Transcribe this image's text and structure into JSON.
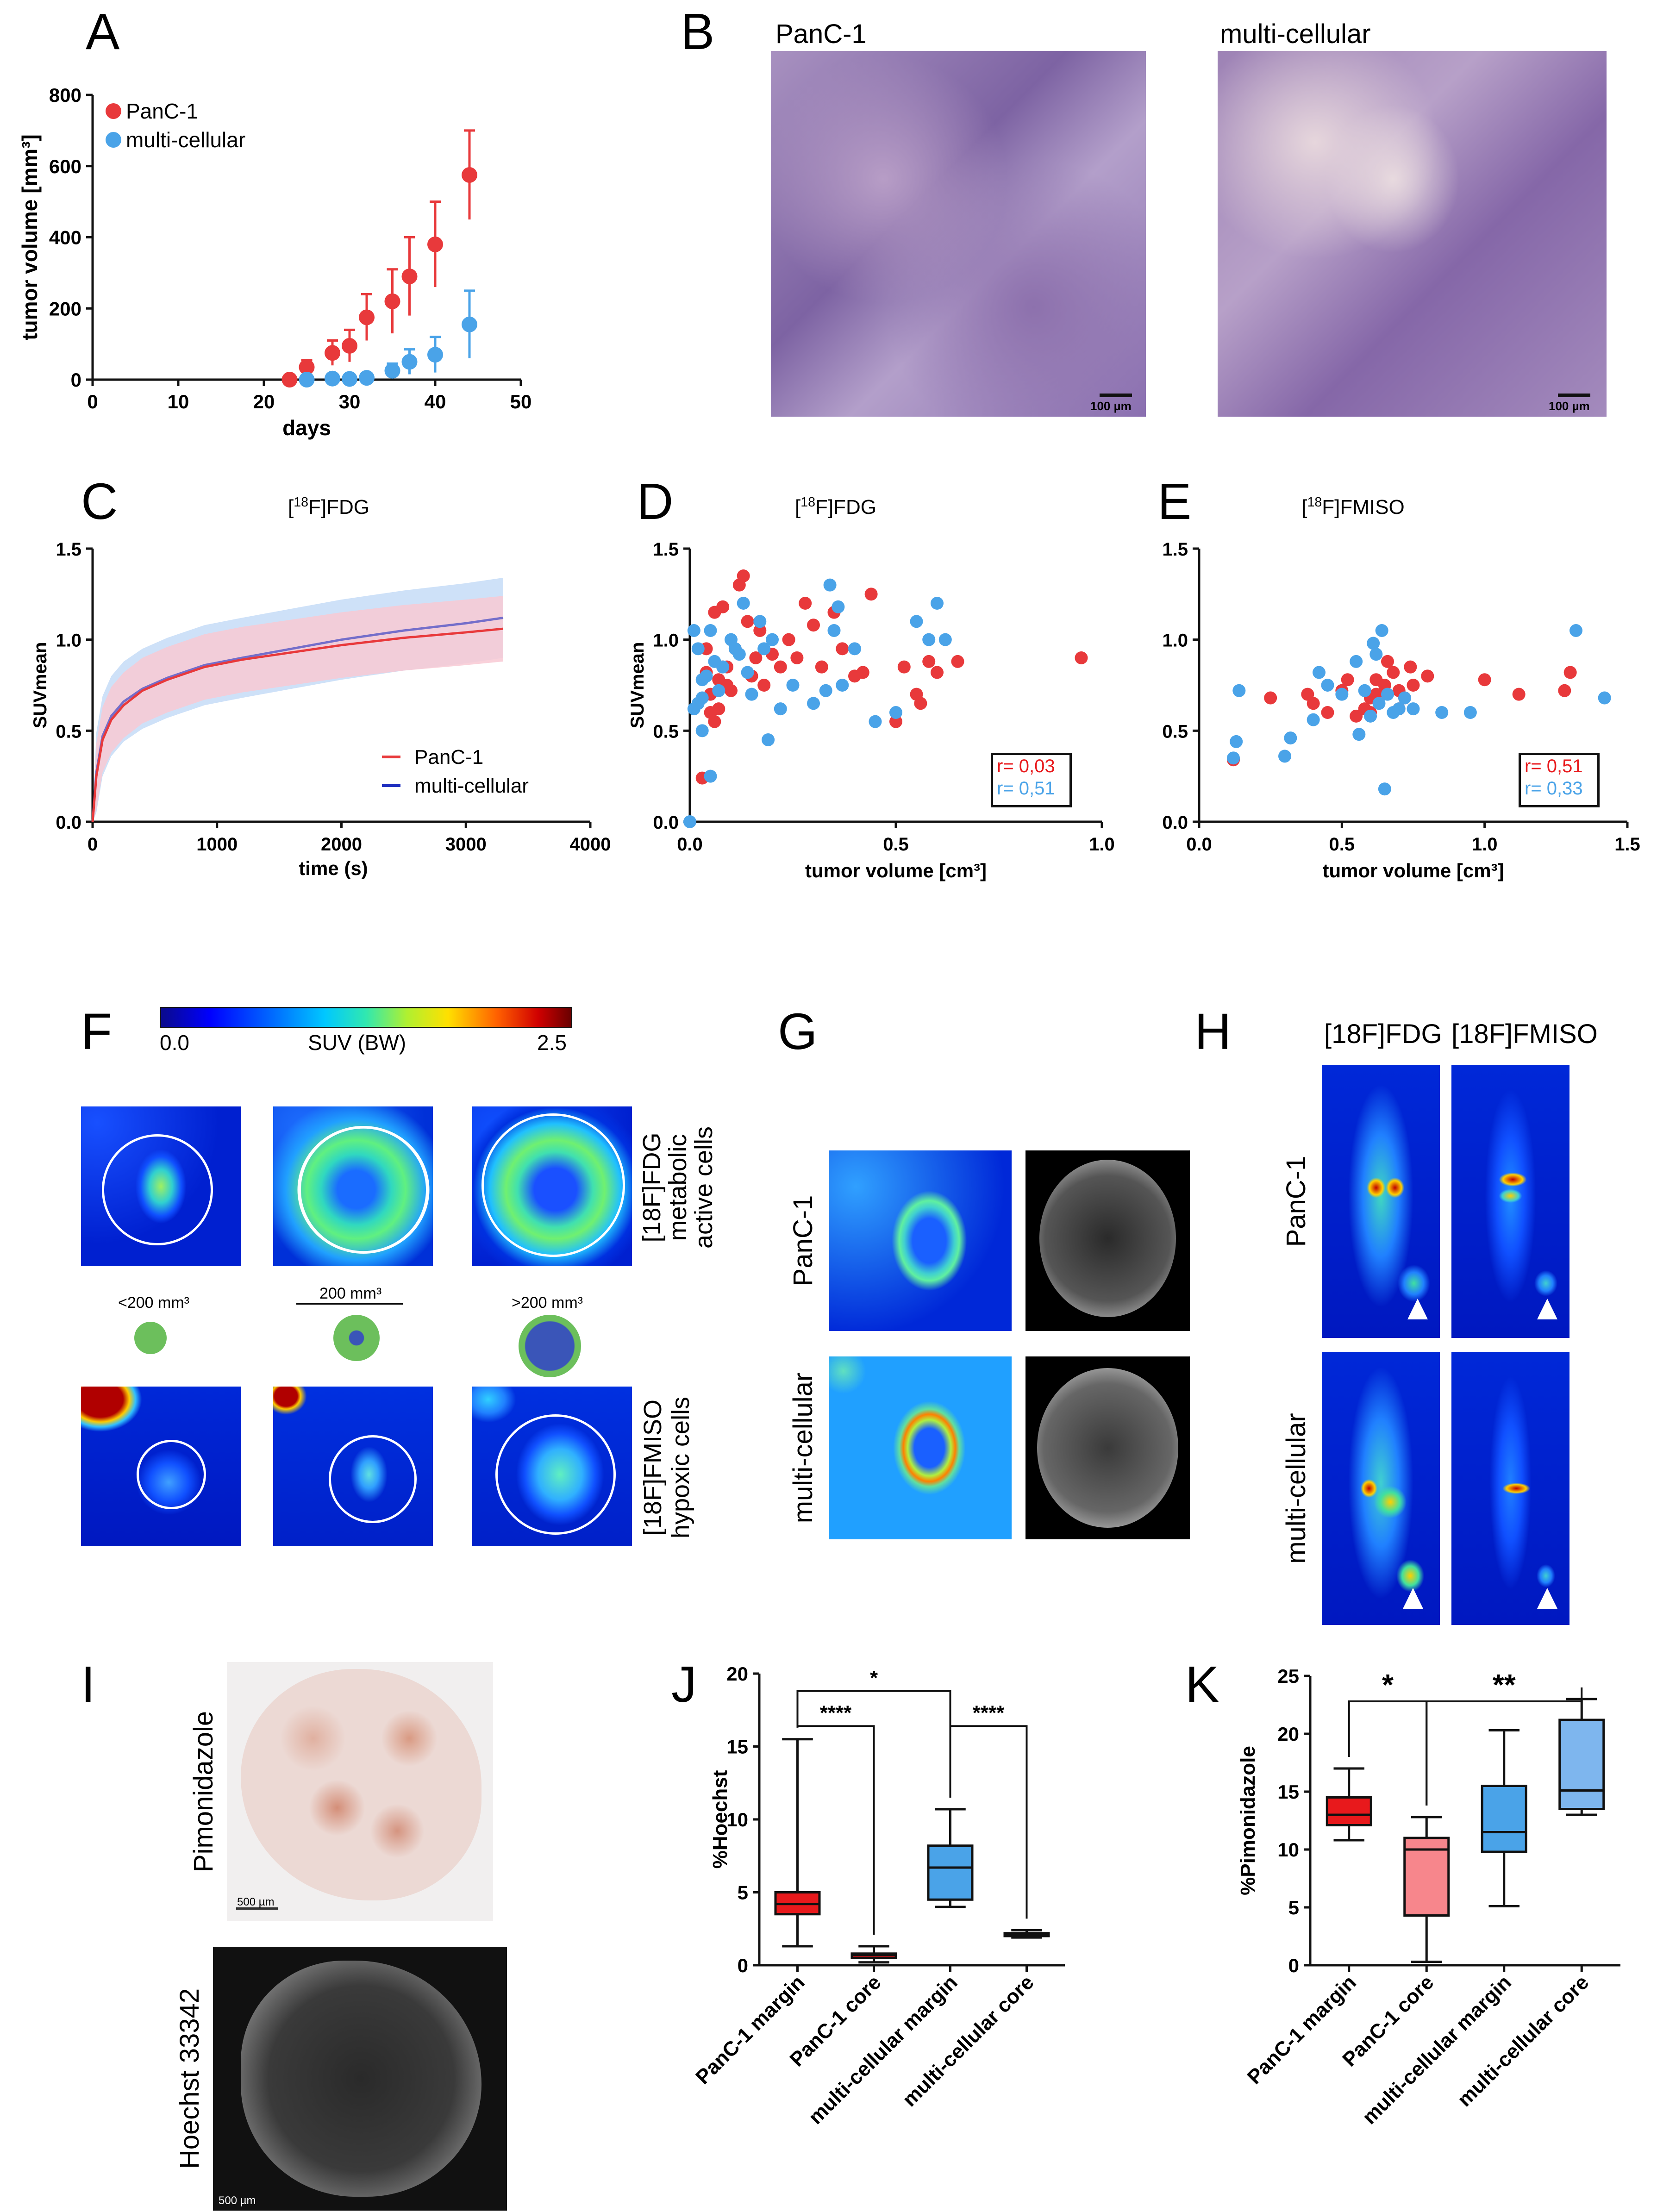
{
  "panels": {
    "A": {
      "letter": "A",
      "chart_data": {
        "type": "scatter",
        "title": "",
        "xlabel": "days",
        "ylabel": "tumor volume [mm³]",
        "xlim": [
          0,
          50
        ],
        "ylim": [
          0,
          800
        ],
        "xticks": [
          0,
          10,
          20,
          30,
          40,
          50
        ],
        "yticks": [
          0,
          200,
          400,
          600,
          800
        ],
        "legend_position": "top-left",
        "series": [
          {
            "name": "PanC-1",
            "color": "#e8393b",
            "x": [
              23,
              25,
              28,
              30,
              32,
              35,
              37,
              40,
              44
            ],
            "y": [
              0,
              35,
              75,
              95,
              175,
              220,
              290,
              380,
              575
            ],
            "err": [
              10,
              20,
              35,
              45,
              65,
              90,
              110,
              120,
              125
            ]
          },
          {
            "name": "multi-cellular",
            "color": "#4aa3e8",
            "x": [
              25,
              28,
              30,
              32,
              35,
              37,
              40,
              44
            ],
            "y": [
              0,
              3,
              2,
              5,
              25,
              50,
              70,
              155
            ],
            "err": [
              3,
              5,
              5,
              8,
              20,
              35,
              50,
              95
            ]
          }
        ]
      }
    },
    "B": {
      "letter": "B",
      "image_labels": [
        "PanC-1",
        "multi-cellular"
      ],
      "scale_label": "100 µm"
    },
    "C": {
      "letter": "C",
      "chart_data": {
        "type": "line",
        "title": "[18F]FDG",
        "xlabel": "time (s)",
        "ylabel": "SUVmean",
        "xlim": [
          0,
          4000
        ],
        "ylim": [
          0,
          1.5
        ],
        "xticks": [
          0,
          1000,
          2000,
          3000,
          4000
        ],
        "yticks": [
          0.0,
          0.5,
          1.0,
          1.5
        ],
        "legend_position": "bottom-right",
        "series": [
          {
            "name": "PanC-1",
            "color": "#e8393b",
            "band": "#f8c9d3",
            "x": [
              0,
              30,
              80,
              150,
              250,
              400,
              600,
              900,
              1200,
              1600,
              2000,
              2500,
              3000,
              3300
            ],
            "y": [
              0,
              0.25,
              0.45,
              0.56,
              0.64,
              0.72,
              0.78,
              0.85,
              0.89,
              0.93,
              0.97,
              1.01,
              1.04,
              1.06
            ],
            "band_halfwidth": 0.18
          },
          {
            "name": "multi-cellular",
            "color": "#1f2fbf",
            "band": "#c6dcf7",
            "x": [
              0,
              30,
              80,
              150,
              250,
              400,
              600,
              900,
              1200,
              1600,
              2000,
              2500,
              3000,
              3300
            ],
            "y": [
              0,
              0.27,
              0.47,
              0.58,
              0.66,
              0.73,
              0.79,
              0.86,
              0.9,
              0.95,
              1.0,
              1.05,
              1.09,
              1.12
            ],
            "band_halfwidth": 0.22
          }
        ]
      }
    },
    "D": {
      "letter": "D",
      "r_labels": [
        "r= 0,03",
        "r= 0,51"
      ],
      "chart_data": {
        "type": "scatter",
        "title": "[18F]FDG",
        "xlabel": "tumor volume [cm³]",
        "ylabel": "SUVmean",
        "xlim": [
          0,
          1.0
        ],
        "ylim": [
          0,
          1.5
        ],
        "xticks": [
          0.0,
          0.5,
          1.0
        ],
        "yticks": [
          0.0,
          0.5,
          1.0,
          1.5
        ],
        "series": [
          {
            "name": "PanC-1",
            "color": "#e8393b",
            "x": [
              0.03,
              0.04,
              0.05,
              0.06,
              0.06,
              0.07,
              0.08,
              0.08,
              0.09,
              0.1,
              0.11,
              0.12,
              0.13,
              0.14,
              0.15,
              0.16,
              0.17,
              0.18,
              0.2,
              0.22,
              0.24,
              0.26,
              0.28,
              0.3,
              0.32,
              0.35,
              0.37,
              0.4,
              0.42,
              0.44,
              0.5,
              0.52,
              0.55,
              0.56,
              0.58,
              0.6,
              0.65,
              0.95,
              0.04,
              0.05,
              0.07,
              0.09
            ],
            "y": [
              0.24,
              0.82,
              0.7,
              0.55,
              1.15,
              0.62,
              0.85,
              1.18,
              0.75,
              0.72,
              0.95,
              1.3,
              1.35,
              1.1,
              0.8,
              0.9,
              1.05,
              0.75,
              0.92,
              0.85,
              1.0,
              0.9,
              1.2,
              1.08,
              0.85,
              1.15,
              0.95,
              0.8,
              0.82,
              1.25,
              0.55,
              0.85,
              0.7,
              0.65,
              0.88,
              0.82,
              0.88,
              0.9,
              0.95,
              0.6,
              0.78,
              0.85
            ]
          },
          {
            "name": "multi-cellular",
            "color": "#4aa3e8",
            "x": [
              0.0,
              0.01,
              0.01,
              0.02,
              0.02,
              0.03,
              0.03,
              0.04,
              0.05,
              0.06,
              0.07,
              0.08,
              0.1,
              0.11,
              0.12,
              0.13,
              0.14,
              0.15,
              0.17,
              0.18,
              0.19,
              0.2,
              0.22,
              0.25,
              0.3,
              0.33,
              0.34,
              0.35,
              0.36,
              0.37,
              0.4,
              0.45,
              0.5,
              0.55,
              0.58,
              0.6,
              0.62,
              0.03,
              0.05
            ],
            "y": [
              0.0,
              0.62,
              1.05,
              0.95,
              0.65,
              0.78,
              0.5,
              0.8,
              0.25,
              0.88,
              0.72,
              0.85,
              1.0,
              0.95,
              0.92,
              1.2,
              0.82,
              0.7,
              1.1,
              0.95,
              0.45,
              1.0,
              0.62,
              0.75,
              0.65,
              0.72,
              1.3,
              1.05,
              1.18,
              0.75,
              0.95,
              0.55,
              0.6,
              1.1,
              1.0,
              1.2,
              1.0,
              0.68,
              1.05
            ]
          }
        ]
      }
    },
    "E": {
      "letter": "E",
      "r_labels": [
        "r= 0,51",
        "r= 0,33"
      ],
      "chart_data": {
        "type": "scatter",
        "title": "[18F]FMISO",
        "xlabel": "tumor volume [cm³]",
        "ylabel": "",
        "xlim": [
          0,
          1.5
        ],
        "ylim": [
          0,
          1.5
        ],
        "xticks": [
          0.0,
          0.5,
          1.0,
          1.5
        ],
        "yticks": [
          0.0,
          0.5,
          1.0,
          1.5
        ],
        "series": [
          {
            "name": "PanC-1",
            "color": "#e8393b",
            "x": [
              0.12,
              0.25,
              0.38,
              0.4,
              0.45,
              0.5,
              0.52,
              0.55,
              0.58,
              0.6,
              0.6,
              0.62,
              0.62,
              0.65,
              0.66,
              0.68,
              0.7,
              0.7,
              0.72,
              0.74,
              0.75,
              0.8,
              1.0,
              1.12,
              1.28,
              1.3
            ],
            "y": [
              0.34,
              0.68,
              0.7,
              0.65,
              0.6,
              0.72,
              0.78,
              0.58,
              0.62,
              0.6,
              0.68,
              0.78,
              0.7,
              0.75,
              0.88,
              0.82,
              0.62,
              0.72,
              0.68,
              0.85,
              0.75,
              0.8,
              0.78,
              0.7,
              0.72,
              0.82
            ]
          },
          {
            "name": "multi-cellular",
            "color": "#4aa3e8",
            "x": [
              0.12,
              0.13,
              0.14,
              0.3,
              0.32,
              0.4,
              0.42,
              0.45,
              0.5,
              0.55,
              0.56,
              0.58,
              0.6,
              0.61,
              0.62,
              0.63,
              0.64,
              0.65,
              0.66,
              0.68,
              0.7,
              0.72,
              0.75,
              0.85,
              0.95,
              1.32,
              1.42
            ],
            "y": [
              0.35,
              0.44,
              0.72,
              0.36,
              0.46,
              0.56,
              0.82,
              0.75,
              0.7,
              0.88,
              0.48,
              0.72,
              0.58,
              0.98,
              0.92,
              0.65,
              1.05,
              0.18,
              0.7,
              0.6,
              0.62,
              0.68,
              0.62,
              0.6,
              0.6,
              1.05,
              0.68
            ]
          }
        ]
      }
    },
    "F": {
      "letter": "F",
      "colorbar": {
        "min_label": "0.0",
        "title": "SUV (BW)",
        "max_label": "2.5"
      },
      "size_labels": [
        "<200 mm³",
        "200 mm³",
        ">200 mm³"
      ],
      "row_labels": {
        "top": [
          "[18F]FDG",
          "metabolic",
          "active cells"
        ],
        "bottom": [
          "[18F]FMISO",
          "hypoxic cells"
        ]
      }
    },
    "G": {
      "letter": "G",
      "row_labels": [
        "PanC-1",
        "multi-cellular"
      ]
    },
    "H": {
      "letter": "H",
      "col_labels": [
        "[18F]FDG",
        "[18F]FMISO"
      ],
      "row_labels": [
        "PanC-1",
        "multi-cellular"
      ]
    },
    "I": {
      "letter": "I",
      "stain_labels": [
        "Pimonidazole",
        "Hoechst 33342"
      ],
      "scale_label": "500 µm"
    },
    "J": {
      "letter": "J",
      "chart_data": {
        "type": "box",
        "ylabel": "%Hoechst",
        "ylim": [
          0,
          20
        ],
        "yticks": [
          0,
          5,
          10,
          15,
          20
        ],
        "categories": [
          "PanC-1 margin",
          "PanC-1 core",
          "multi-cellular margin",
          "multi-cellular core"
        ],
        "colors": [
          "#e8191c",
          "#e8191c",
          "#4aa3e8",
          "#4aa3e8"
        ],
        "boxes": [
          {
            "min": 1.3,
            "q1": 3.5,
            "median": 4.2,
            "q3": 5.0,
            "max": 15.5
          },
          {
            "min": 0.2,
            "q1": 0.5,
            "median": 0.7,
            "q3": 0.8,
            "max": 1.3
          },
          {
            "min": 4.0,
            "q1": 4.5,
            "median": 6.7,
            "q3": 8.2,
            "max": 10.7
          },
          {
            "min": 1.9,
            "q1": 2.0,
            "median": 2.1,
            "q3": 2.2,
            "max": 2.4
          }
        ],
        "significance": [
          {
            "from": 0,
            "to": 2,
            "label": "*",
            "y": 18.8
          },
          {
            "from": 0,
            "to": 1,
            "label": "****",
            "y": 16.4
          },
          {
            "from": 2,
            "to": 3,
            "label": "****",
            "y": 16.4
          }
        ]
      }
    },
    "K": {
      "letter": "K",
      "chart_data": {
        "type": "box",
        "ylabel": "%Pimonidazole",
        "ylim": [
          0,
          25
        ],
        "yticks": [
          0,
          5,
          10,
          15,
          20,
          25
        ],
        "categories": [
          "PanC-1 margin",
          "PanC-1 core",
          "multi-cellular margin",
          "multi-cellular core"
        ],
        "colors": [
          "#e8191c",
          "#f7868c",
          "#4aa3e8",
          "#7eb6ee"
        ],
        "boxes": [
          {
            "min": 10.8,
            "q1": 12.1,
            "median": 13.0,
            "q3": 14.5,
            "max": 17.0
          },
          {
            "min": 0.3,
            "q1": 4.3,
            "median": 10.0,
            "q3": 11.0,
            "max": 12.8
          },
          {
            "min": 5.1,
            "q1": 9.8,
            "median": 11.5,
            "q3": 15.5,
            "max": 20.3
          },
          {
            "min": 13.0,
            "q1": 13.5,
            "median": 15.1,
            "q3": 21.2,
            "max": 23.0
          }
        ],
        "significance": [
          {
            "from": 0,
            "to": 1,
            "label": "*",
            "y": 22.8
          },
          {
            "from": 1,
            "to": 3,
            "label": "**",
            "y": 22.8
          }
        ]
      }
    }
  }
}
